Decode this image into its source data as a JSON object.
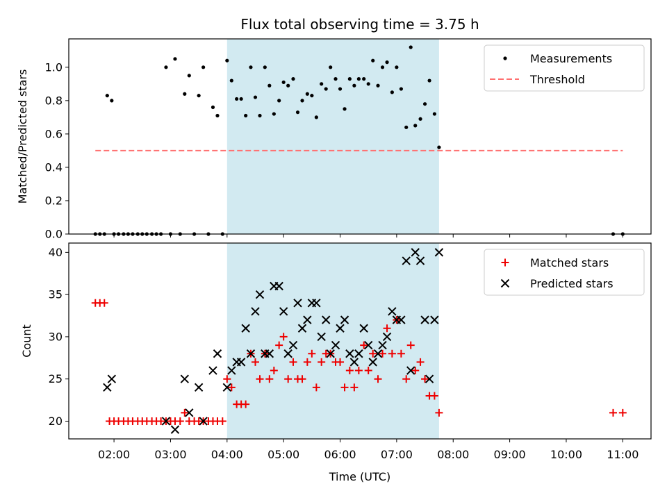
{
  "title": "Flux total observing time = 3.75 h",
  "colors": {
    "shade": "#add8e6",
    "threshold": "#ff7070",
    "matched": "#ee0000",
    "predicted": "#000000",
    "measurement": "#000000"
  },
  "x_axis": {
    "label": "Time (UTC)",
    "min_hours": 1.2,
    "max_hours": 11.5,
    "tick_hours": [
      2,
      3,
      4,
      5,
      6,
      7,
      8,
      9,
      10,
      11
    ],
    "tick_labels": [
      "02:00",
      "03:00",
      "04:00",
      "05:00",
      "06:00",
      "07:00",
      "08:00",
      "09:00",
      "10:00",
      "11:00"
    ]
  },
  "shaded_span_hours": [
    4.0,
    7.75
  ],
  "chart_data": [
    {
      "type": "scatter",
      "ylabel": "Matched/Predicted stars",
      "ylim": [
        0,
        1.17
      ],
      "yticks": [
        0.0,
        0.2,
        0.4,
        0.6,
        0.8,
        1.0
      ],
      "ytick_labels": [
        "0.0",
        "0.2",
        "0.4",
        "0.6",
        "0.8",
        "1.0"
      ],
      "legend": {
        "placement": "top-right",
        "entries": [
          "Measurements",
          "Threshold"
        ]
      },
      "threshold": {
        "name": "Threshold",
        "y": 0.5,
        "x_range": [
          1.67,
          11.0
        ]
      },
      "series": [
        {
          "name": "Measurements",
          "points": [
            [
              1.67,
              0
            ],
            [
              1.75,
              0
            ],
            [
              1.83,
              0
            ],
            [
              1.88,
              0.83
            ],
            [
              1.96,
              0.8
            ],
            [
              2.0,
              0
            ],
            [
              2.08,
              0
            ],
            [
              2.17,
              0
            ],
            [
              2.25,
              0
            ],
            [
              2.33,
              0
            ],
            [
              2.42,
              0
            ],
            [
              2.5,
              0
            ],
            [
              2.58,
              0
            ],
            [
              2.67,
              0
            ],
            [
              2.75,
              0
            ],
            [
              2.83,
              0
            ],
            [
              2.92,
              1.0
            ],
            [
              3.0,
              0
            ],
            [
              3.08,
              1.05
            ],
            [
              3.17,
              0
            ],
            [
              3.25,
              0.84
            ],
            [
              3.33,
              0.95
            ],
            [
              3.42,
              0
            ],
            [
              3.5,
              0.83
            ],
            [
              3.58,
              1.0
            ],
            [
              3.67,
              0
            ],
            [
              3.75,
              0.76
            ],
            [
              3.83,
              0.71
            ],
            [
              3.92,
              0
            ],
            [
              4.0,
              1.04
            ],
            [
              4.08,
              0.92
            ],
            [
              4.17,
              0.81
            ],
            [
              4.25,
              0.81
            ],
            [
              4.33,
              0.71
            ],
            [
              4.42,
              1.0
            ],
            [
              4.5,
              0.82
            ],
            [
              4.58,
              0.71
            ],
            [
              4.67,
              1.0
            ],
            [
              4.75,
              0.89
            ],
            [
              4.83,
              0.72
            ],
            [
              4.92,
              0.8
            ],
            [
              5.0,
              0.91
            ],
            [
              5.08,
              0.89
            ],
            [
              5.17,
              0.93
            ],
            [
              5.25,
              0.73
            ],
            [
              5.33,
              0.8
            ],
            [
              5.42,
              0.84
            ],
            [
              5.5,
              0.83
            ],
            [
              5.58,
              0.7
            ],
            [
              5.67,
              0.9
            ],
            [
              5.75,
              0.87
            ],
            [
              5.83,
              1.0
            ],
            [
              5.92,
              0.93
            ],
            [
              6.0,
              0.87
            ],
            [
              6.08,
              0.75
            ],
            [
              6.17,
              0.93
            ],
            [
              6.25,
              0.89
            ],
            [
              6.33,
              0.93
            ],
            [
              6.42,
              0.93
            ],
            [
              6.5,
              0.9
            ],
            [
              6.58,
              1.04
            ],
            [
              6.67,
              0.89
            ],
            [
              6.75,
              1.0
            ],
            [
              6.83,
              1.03
            ],
            [
              6.92,
              0.85
            ],
            [
              7.0,
              1.0
            ],
            [
              7.08,
              0.87
            ],
            [
              7.17,
              0.64
            ],
            [
              7.25,
              1.12
            ],
            [
              7.33,
              0.65
            ],
            [
              7.42,
              0.69
            ],
            [
              7.5,
              0.78
            ],
            [
              7.58,
              0.92
            ],
            [
              7.67,
              0.72
            ],
            [
              7.75,
              0.52
            ],
            [
              10.83,
              0
            ],
            [
              11.0,
              0
            ]
          ]
        }
      ]
    },
    {
      "type": "scatter",
      "xlabel": "Time (UTC)",
      "ylabel": "Count",
      "ylim": [
        17.9,
        41.1
      ],
      "yticks": [
        20,
        25,
        30,
        35,
        40
      ],
      "ytick_labels": [
        "20",
        "25",
        "30",
        "35",
        "40"
      ],
      "legend": {
        "placement": "top-right",
        "entries": [
          "Matched stars",
          "Predicted stars"
        ]
      },
      "series": [
        {
          "name": "Matched stars",
          "marker": "plus",
          "points": [
            [
              1.67,
              34
            ],
            [
              1.75,
              34
            ],
            [
              1.83,
              34
            ],
            [
              1.92,
              20
            ],
            [
              2.0,
              20
            ],
            [
              2.08,
              20
            ],
            [
              2.17,
              20
            ],
            [
              2.25,
              20
            ],
            [
              2.33,
              20
            ],
            [
              2.42,
              20
            ],
            [
              2.5,
              20
            ],
            [
              2.58,
              20
            ],
            [
              2.67,
              20
            ],
            [
              2.75,
              20
            ],
            [
              2.83,
              20
            ],
            [
              2.92,
              20
            ],
            [
              3.0,
              20
            ],
            [
              3.08,
              20
            ],
            [
              3.17,
              20
            ],
            [
              3.25,
              21
            ],
            [
              3.33,
              20
            ],
            [
              3.42,
              20
            ],
            [
              3.5,
              20
            ],
            [
              3.58,
              20
            ],
            [
              3.67,
              20
            ],
            [
              3.75,
              20
            ],
            [
              3.83,
              20
            ],
            [
              3.92,
              20
            ],
            [
              4.0,
              25
            ],
            [
              4.08,
              24
            ],
            [
              4.17,
              22
            ],
            [
              4.25,
              22
            ],
            [
              4.33,
              22
            ],
            [
              4.42,
              28
            ],
            [
              4.5,
              27
            ],
            [
              4.58,
              25
            ],
            [
              4.67,
              28
            ],
            [
              4.75,
              25
            ],
            [
              4.83,
              26
            ],
            [
              4.92,
              29
            ],
            [
              5.0,
              30
            ],
            [
              5.08,
              25
            ],
            [
              5.17,
              27
            ],
            [
              5.25,
              25
            ],
            [
              5.33,
              25
            ],
            [
              5.42,
              27
            ],
            [
              5.5,
              28
            ],
            [
              5.58,
              24
            ],
            [
              5.67,
              27
            ],
            [
              5.75,
              28
            ],
            [
              5.83,
              28
            ],
            [
              5.92,
              27
            ],
            [
              6.0,
              27
            ],
            [
              6.08,
              24
            ],
            [
              6.17,
              26
            ],
            [
              6.25,
              24
            ],
            [
              6.33,
              26
            ],
            [
              6.42,
              29
            ],
            [
              6.5,
              26
            ],
            [
              6.58,
              28
            ],
            [
              6.67,
              25
            ],
            [
              6.75,
              28
            ],
            [
              6.83,
              31
            ],
            [
              6.92,
              28
            ],
            [
              7.0,
              32
            ],
            [
              7.08,
              28
            ],
            [
              7.17,
              25
            ],
            [
              7.25,
              29
            ],
            [
              7.33,
              26
            ],
            [
              7.42,
              27
            ],
            [
              7.5,
              25
            ],
            [
              7.58,
              23
            ],
            [
              7.67,
              23
            ],
            [
              7.75,
              21
            ],
            [
              10.83,
              21
            ],
            [
              11.0,
              21
            ]
          ]
        },
        {
          "name": "Predicted stars",
          "marker": "x",
          "points": [
            [
              1.88,
              24
            ],
            [
              1.96,
              25
            ],
            [
              2.92,
              20
            ],
            [
              3.08,
              19
            ],
            [
              3.25,
              25
            ],
            [
              3.33,
              21
            ],
            [
              3.5,
              24
            ],
            [
              3.58,
              20
            ],
            [
              3.75,
              26
            ],
            [
              3.83,
              28
            ],
            [
              4.0,
              24
            ],
            [
              4.08,
              26
            ],
            [
              4.17,
              27
            ],
            [
              4.25,
              27
            ],
            [
              4.33,
              31
            ],
            [
              4.42,
              28
            ],
            [
              4.5,
              33
            ],
            [
              4.58,
              35
            ],
            [
              4.67,
              28
            ],
            [
              4.75,
              28
            ],
            [
              4.83,
              36
            ],
            [
              4.92,
              36
            ],
            [
              5.0,
              33
            ],
            [
              5.08,
              28
            ],
            [
              5.17,
              29
            ],
            [
              5.25,
              34
            ],
            [
              5.33,
              31
            ],
            [
              5.42,
              32
            ],
            [
              5.5,
              34
            ],
            [
              5.58,
              34
            ],
            [
              5.67,
              30
            ],
            [
              5.75,
              32
            ],
            [
              5.83,
              28
            ],
            [
              5.92,
              29
            ],
            [
              6.0,
              31
            ],
            [
              6.08,
              32
            ],
            [
              6.17,
              28
            ],
            [
              6.25,
              27
            ],
            [
              6.33,
              28
            ],
            [
              6.42,
              31
            ],
            [
              6.5,
              29
            ],
            [
              6.58,
              27
            ],
            [
              6.67,
              28
            ],
            [
              6.75,
              29
            ],
            [
              6.83,
              30
            ],
            [
              6.92,
              33
            ],
            [
              7.0,
              32
            ],
            [
              7.08,
              32
            ],
            [
              7.17,
              39
            ],
            [
              7.25,
              26
            ],
            [
              7.33,
              40
            ],
            [
              7.42,
              39
            ],
            [
              7.5,
              32
            ],
            [
              7.58,
              25
            ],
            [
              7.67,
              32
            ],
            [
              7.75,
              40
            ]
          ]
        }
      ]
    }
  ]
}
